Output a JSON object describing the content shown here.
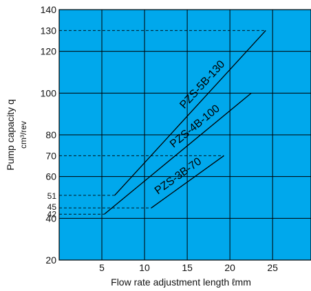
{
  "chart_data": {
    "type": "line",
    "xlabel": "Flow rate adjustment length ℓmm",
    "ylabel": "Pump capacity q",
    "ylabel_unit": "cm³/rev",
    "xlim": [
      0,
      29.5
    ],
    "ylim": [
      20,
      140
    ],
    "x_ticks": [
      5,
      10,
      15,
      20,
      25
    ],
    "y_ticks_major": [
      20,
      40,
      60,
      80,
      100,
      120,
      140
    ],
    "y_ticks_labeled": [
      20,
      40,
      42,
      45,
      51,
      60,
      70,
      80,
      100,
      120,
      130,
      140
    ],
    "y_ticks_small": [
      42,
      45,
      51
    ],
    "reference_lines": [
      130,
      70,
      51,
      45,
      42
    ],
    "grid": true,
    "background_color": "#00a8ec",
    "line_color": "#000000",
    "series": [
      {
        "name": "PZS-5B-130",
        "x": [
          6.5,
          24.2
        ],
        "y": [
          51,
          130
        ]
      },
      {
        "name": "PZS-4B-100",
        "x": [
          5.3,
          22.5
        ],
        "y": [
          42,
          100
        ]
      },
      {
        "name": "PZS-3B-70",
        "x": [
          10.8,
          19.3
        ],
        "y": [
          45,
          70
        ]
      }
    ]
  }
}
